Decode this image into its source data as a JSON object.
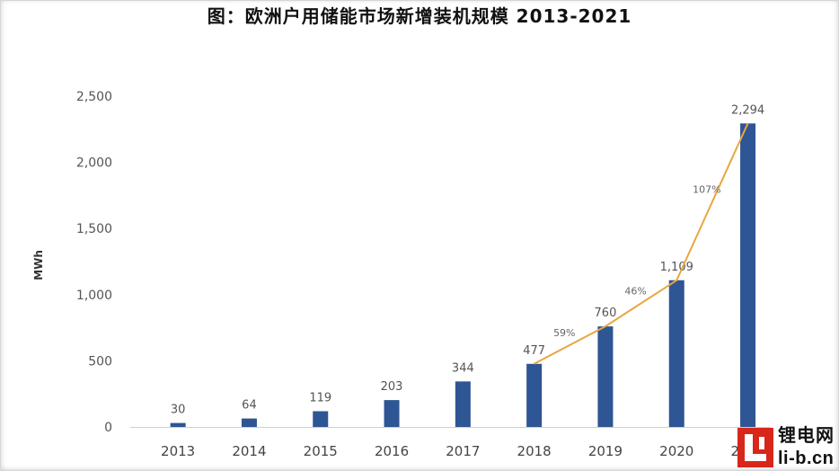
{
  "chart_data": {
    "type": "bar",
    "title": "图：欧洲户用储能市场新增装机规模 2013-2021",
    "xlabel": "",
    "ylabel": "MWh",
    "categories": [
      "2013",
      "2014",
      "2015",
      "2016",
      "2017",
      "2018",
      "2019",
      "2020",
      "2021"
    ],
    "series": [
      {
        "values": [
          30,
          64,
          119,
          203,
          344,
          477,
          760,
          1109,
          2294
        ],
        "data_labels": [
          "30",
          "64",
          "119",
          "203",
          "344",
          "477",
          "760",
          "1,109",
          "2,294"
        ]
      }
    ],
    "ylim": [
      0,
      2500
    ],
    "yticks": [
      0,
      500,
      1000,
      1500,
      2000,
      2500
    ],
    "ytick_labels": [
      "0",
      "500",
      "1,000",
      "1,500",
      "2,000",
      "2,500"
    ],
    "growth_line": {
      "type": "line",
      "x": [
        "2018",
        "2019",
        "2020",
        "2021"
      ],
      "y": [
        477,
        760,
        1109,
        2294
      ],
      "segment_labels": [
        "59%",
        "46%",
        "107%"
      ]
    },
    "grid": false,
    "legend": "none",
    "colors": {
      "bar": "#2e5594",
      "line": "#e8a640",
      "text": "#555555",
      "title": "#111111"
    }
  },
  "watermark": {
    "logo_icon": "li-b-logo-icon",
    "logo_color": "#d8261b",
    "name": "锂电网",
    "domain": "li-b.cn"
  }
}
